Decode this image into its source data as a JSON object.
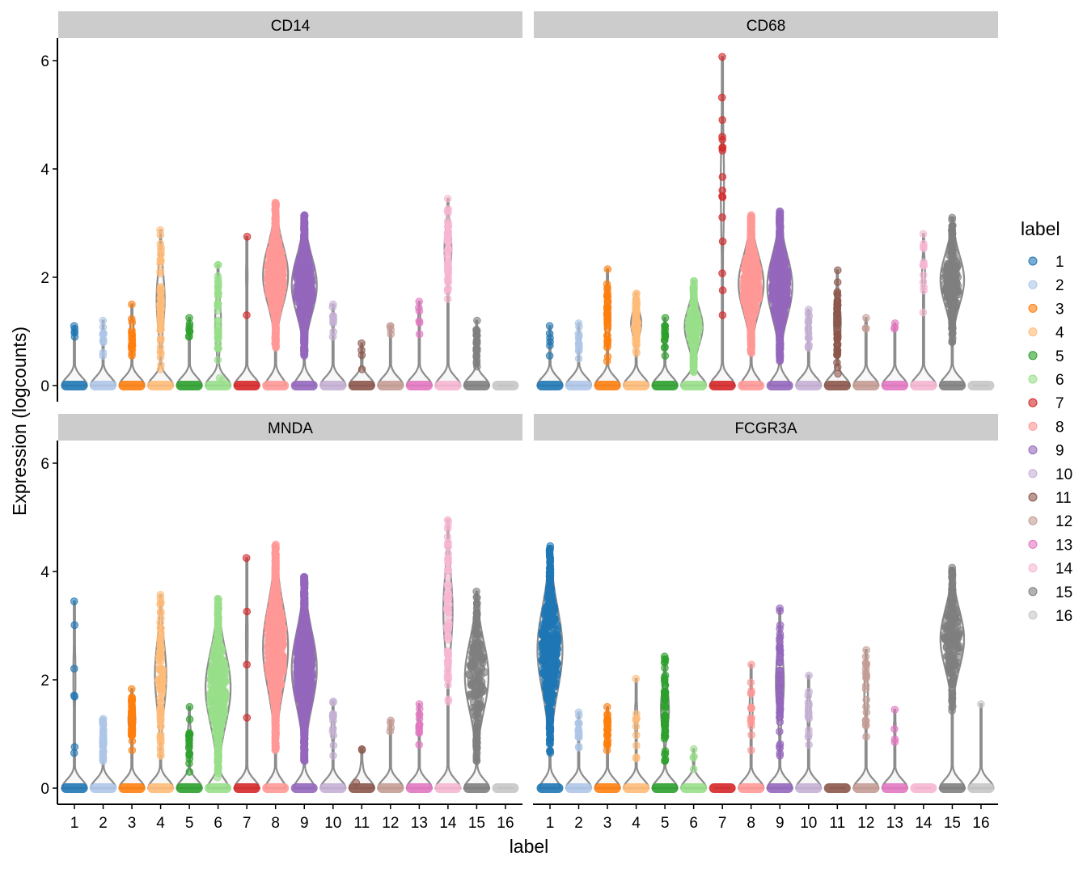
{
  "chart_data": {
    "type": "violin",
    "xlabel": "label",
    "ylabel": "Expression (logcounts)",
    "ylim": [
      0,
      6.3
    ],
    "yticks": [
      0,
      2,
      4,
      6
    ],
    "categories": [
      "1",
      "2",
      "3",
      "4",
      "5",
      "6",
      "7",
      "8",
      "9",
      "10",
      "11",
      "12",
      "13",
      "14",
      "15",
      "16"
    ],
    "grid": false,
    "legend": {
      "title": "label",
      "position": "right",
      "entries": [
        "1",
        "2",
        "3",
        "4",
        "5",
        "6",
        "7",
        "8",
        "9",
        "10",
        "11",
        "12",
        "13",
        "14",
        "15",
        "16"
      ]
    },
    "colors": [
      "#1f77b4",
      "#aec7e8",
      "#ff7f0e",
      "#ffbb78",
      "#2ca02c",
      "#98df8a",
      "#d62728",
      "#ff9896",
      "#9467bd",
      "#c5b0d5",
      "#8c564b",
      "#c49c94",
      "#e377c2",
      "#f7b6d2",
      "#7f7f7f",
      "#c7c7c7"
    ],
    "facets": [
      {
        "title": "CD14",
        "clusters": [
          {
            "min_nonzero": 0.9,
            "max": 1.1,
            "n_nonzero": 5
          },
          {
            "min_nonzero": 0.55,
            "max": 1.2,
            "n_nonzero": 12
          },
          {
            "min_nonzero": 0.55,
            "max": 1.5,
            "n_nonzero": 20
          },
          {
            "min_nonzero": 0.3,
            "max": 2.87,
            "n_nonzero": 60
          },
          {
            "min_nonzero": 0.9,
            "max": 1.25,
            "n_nonzero": 8
          },
          {
            "min_nonzero": 0.1,
            "max": 2.23,
            "n_nonzero": 40
          },
          {
            "min_nonzero": 1.3,
            "max": 2.75,
            "n_nonzero": 2
          },
          {
            "min_nonzero": 0.7,
            "max": 3.38,
            "n_nonzero": 600
          },
          {
            "min_nonzero": 0.55,
            "max": 3.15,
            "n_nonzero": 600
          },
          {
            "min_nonzero": 0.9,
            "max": 1.5,
            "n_nonzero": 10
          },
          {
            "min_nonzero": 0.3,
            "max": 0.78,
            "n_nonzero": 4
          },
          {
            "min_nonzero": 0.95,
            "max": 1.1,
            "n_nonzero": 4
          },
          {
            "min_nonzero": 0.95,
            "max": 1.55,
            "n_nonzero": 6
          },
          {
            "min_nonzero": 1.6,
            "max": 3.45,
            "n_nonzero": 50
          },
          {
            "min_nonzero": 0.35,
            "max": 1.2,
            "n_nonzero": 25
          },
          {
            "min_nonzero": 0,
            "max": 0,
            "n_nonzero": 0
          }
        ]
      },
      {
        "title": "CD68",
        "clusters": [
          {
            "min_nonzero": 0.55,
            "max": 1.1,
            "n_nonzero": 6
          },
          {
            "min_nonzero": 0.5,
            "max": 1.15,
            "n_nonzero": 12
          },
          {
            "min_nonzero": 0.45,
            "max": 2.15,
            "n_nonzero": 40
          },
          {
            "min_nonzero": 0.6,
            "max": 1.7,
            "n_nonzero": 80
          },
          {
            "min_nonzero": 0.55,
            "max": 1.25,
            "n_nonzero": 15
          },
          {
            "min_nonzero": 0.25,
            "max": 1.93,
            "n_nonzero": 150
          },
          {
            "min_nonzero": 1.3,
            "max": 6.07,
            "n_nonzero": 17
          },
          {
            "min_nonzero": 0.6,
            "max": 3.15,
            "n_nonzero": 600
          },
          {
            "min_nonzero": 0.45,
            "max": 3.22,
            "n_nonzero": 600
          },
          {
            "min_nonzero": 0.7,
            "max": 1.4,
            "n_nonzero": 15
          },
          {
            "min_nonzero": 0.22,
            "max": 2.13,
            "n_nonzero": 50
          },
          {
            "min_nonzero": 1.05,
            "max": 1.25,
            "n_nonzero": 3
          },
          {
            "min_nonzero": 1.05,
            "max": 1.15,
            "n_nonzero": 3
          },
          {
            "min_nonzero": 1.35,
            "max": 2.8,
            "n_nonzero": 15
          },
          {
            "min_nonzero": 0.8,
            "max": 3.1,
            "n_nonzero": 200
          },
          {
            "min_nonzero": 0,
            "max": 0,
            "n_nonzero": 0
          }
        ]
      },
      {
        "title": "MNDA",
        "clusters": [
          {
            "min_nonzero": 0.65,
            "max": 3.45,
            "n_nonzero": 7
          },
          {
            "min_nonzero": 0.5,
            "max": 1.28,
            "n_nonzero": 40
          },
          {
            "min_nonzero": 0.7,
            "max": 1.83,
            "n_nonzero": 50
          },
          {
            "min_nonzero": 0.6,
            "max": 3.57,
            "n_nonzero": 90
          },
          {
            "min_nonzero": 0.3,
            "max": 1.5,
            "n_nonzero": 20
          },
          {
            "min_nonzero": 0.2,
            "max": 3.5,
            "n_nonzero": 400
          },
          {
            "min_nonzero": 1.3,
            "max": 4.25,
            "n_nonzero": 4
          },
          {
            "min_nonzero": 0.7,
            "max": 4.5,
            "n_nonzero": 800
          },
          {
            "min_nonzero": 0.5,
            "max": 3.9,
            "n_nonzero": 800
          },
          {
            "min_nonzero": 0.6,
            "max": 1.6,
            "n_nonzero": 15
          },
          {
            "min_nonzero": 0.1,
            "max": 0.72,
            "n_nonzero": 3
          },
          {
            "min_nonzero": 1.05,
            "max": 1.25,
            "n_nonzero": 4
          },
          {
            "min_nonzero": 0.8,
            "max": 1.55,
            "n_nonzero": 12
          },
          {
            "min_nonzero": 1.6,
            "max": 4.95,
            "n_nonzero": 70
          },
          {
            "min_nonzero": 0.5,
            "max": 3.63,
            "n_nonzero": 200
          },
          {
            "min_nonzero": 0,
            "max": 0,
            "n_nonzero": 0
          }
        ]
      },
      {
        "title": "FCGR3A",
        "clusters": [
          {
            "min_nonzero": 0.65,
            "max": 4.47,
            "n_nonzero": 500
          },
          {
            "min_nonzero": 0.75,
            "max": 1.4,
            "n_nonzero": 15
          },
          {
            "min_nonzero": 0.7,
            "max": 1.5,
            "n_nonzero": 25
          },
          {
            "min_nonzero": 0.55,
            "max": 2.02,
            "n_nonzero": 10
          },
          {
            "min_nonzero": 0.5,
            "max": 2.43,
            "n_nonzero": 60
          },
          {
            "min_nonzero": 0.35,
            "max": 0.72,
            "n_nonzero": 4
          },
          {
            "min_nonzero": 0,
            "max": 0,
            "n_nonzero": 0
          },
          {
            "min_nonzero": 0.7,
            "max": 2.28,
            "n_nonzero": 15
          },
          {
            "min_nonzero": 0.6,
            "max": 3.32,
            "n_nonzero": 60
          },
          {
            "min_nonzero": 0.8,
            "max": 2.08,
            "n_nonzero": 15
          },
          {
            "min_nonzero": 0,
            "max": 0,
            "n_nonzero": 0
          },
          {
            "min_nonzero": 0.95,
            "max": 2.55,
            "n_nonzero": 20
          },
          {
            "min_nonzero": 0.85,
            "max": 1.45,
            "n_nonzero": 4
          },
          {
            "min_nonzero": 0,
            "max": 0,
            "n_nonzero": 0
          },
          {
            "min_nonzero": 1.43,
            "max": 4.07,
            "n_nonzero": 200
          },
          {
            "min_nonzero": 1.55,
            "max": 1.55,
            "n_nonzero": 1
          }
        ]
      }
    ]
  }
}
